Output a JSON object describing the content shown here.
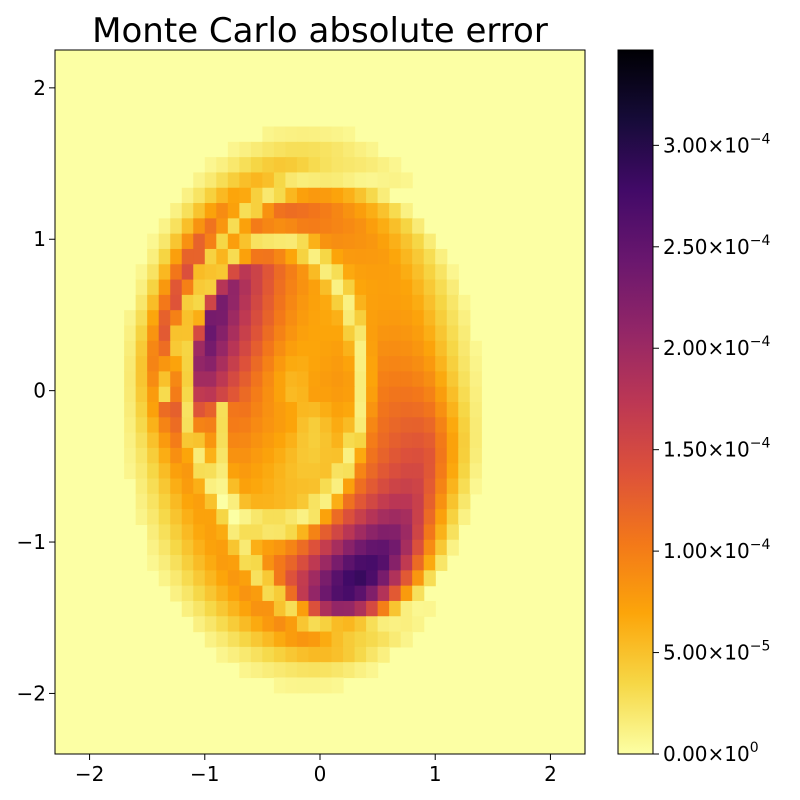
{
  "chart_data": {
    "type": "heatmap",
    "title": "Monte Carlo absolute error",
    "xlabel": "",
    "ylabel": "",
    "xlim": [
      -2.3,
      2.3
    ],
    "ylim": [
      -2.4,
      2.25
    ],
    "x_ticks": [
      "−2",
      "−1",
      "0",
      "1",
      "2"
    ],
    "x_tick_values": [
      -2,
      -1,
      0,
      1,
      2
    ],
    "y_ticks": [
      "2",
      "1",
      "0",
      "−1",
      "−2"
    ],
    "y_tick_values": [
      2,
      1,
      0,
      -1,
      -2
    ],
    "colormap": "inferno_r",
    "grid": false,
    "colorbar": {
      "range": [
        0,
        0.000347
      ],
      "ticks": [
        {
          "value": 0.0003,
          "mantissa": "3.00",
          "exponent": "−4"
        },
        {
          "value": 0.00025,
          "mantissa": "2.50",
          "exponent": "−4"
        },
        {
          "value": 0.0002,
          "mantissa": "2.00",
          "exponent": "−4"
        },
        {
          "value": 0.00015,
          "mantissa": "1.50",
          "exponent": "−4"
        },
        {
          "value": 0.0001,
          "mantissa": "1.00",
          "exponent": "−4"
        },
        {
          "value": 5e-05,
          "mantissa": "5.00",
          "exponent": "−5"
        },
        {
          "value": 0,
          "mantissa": "0.00",
          "exponent": "0"
        }
      ],
      "times": "×10"
    }
  }
}
